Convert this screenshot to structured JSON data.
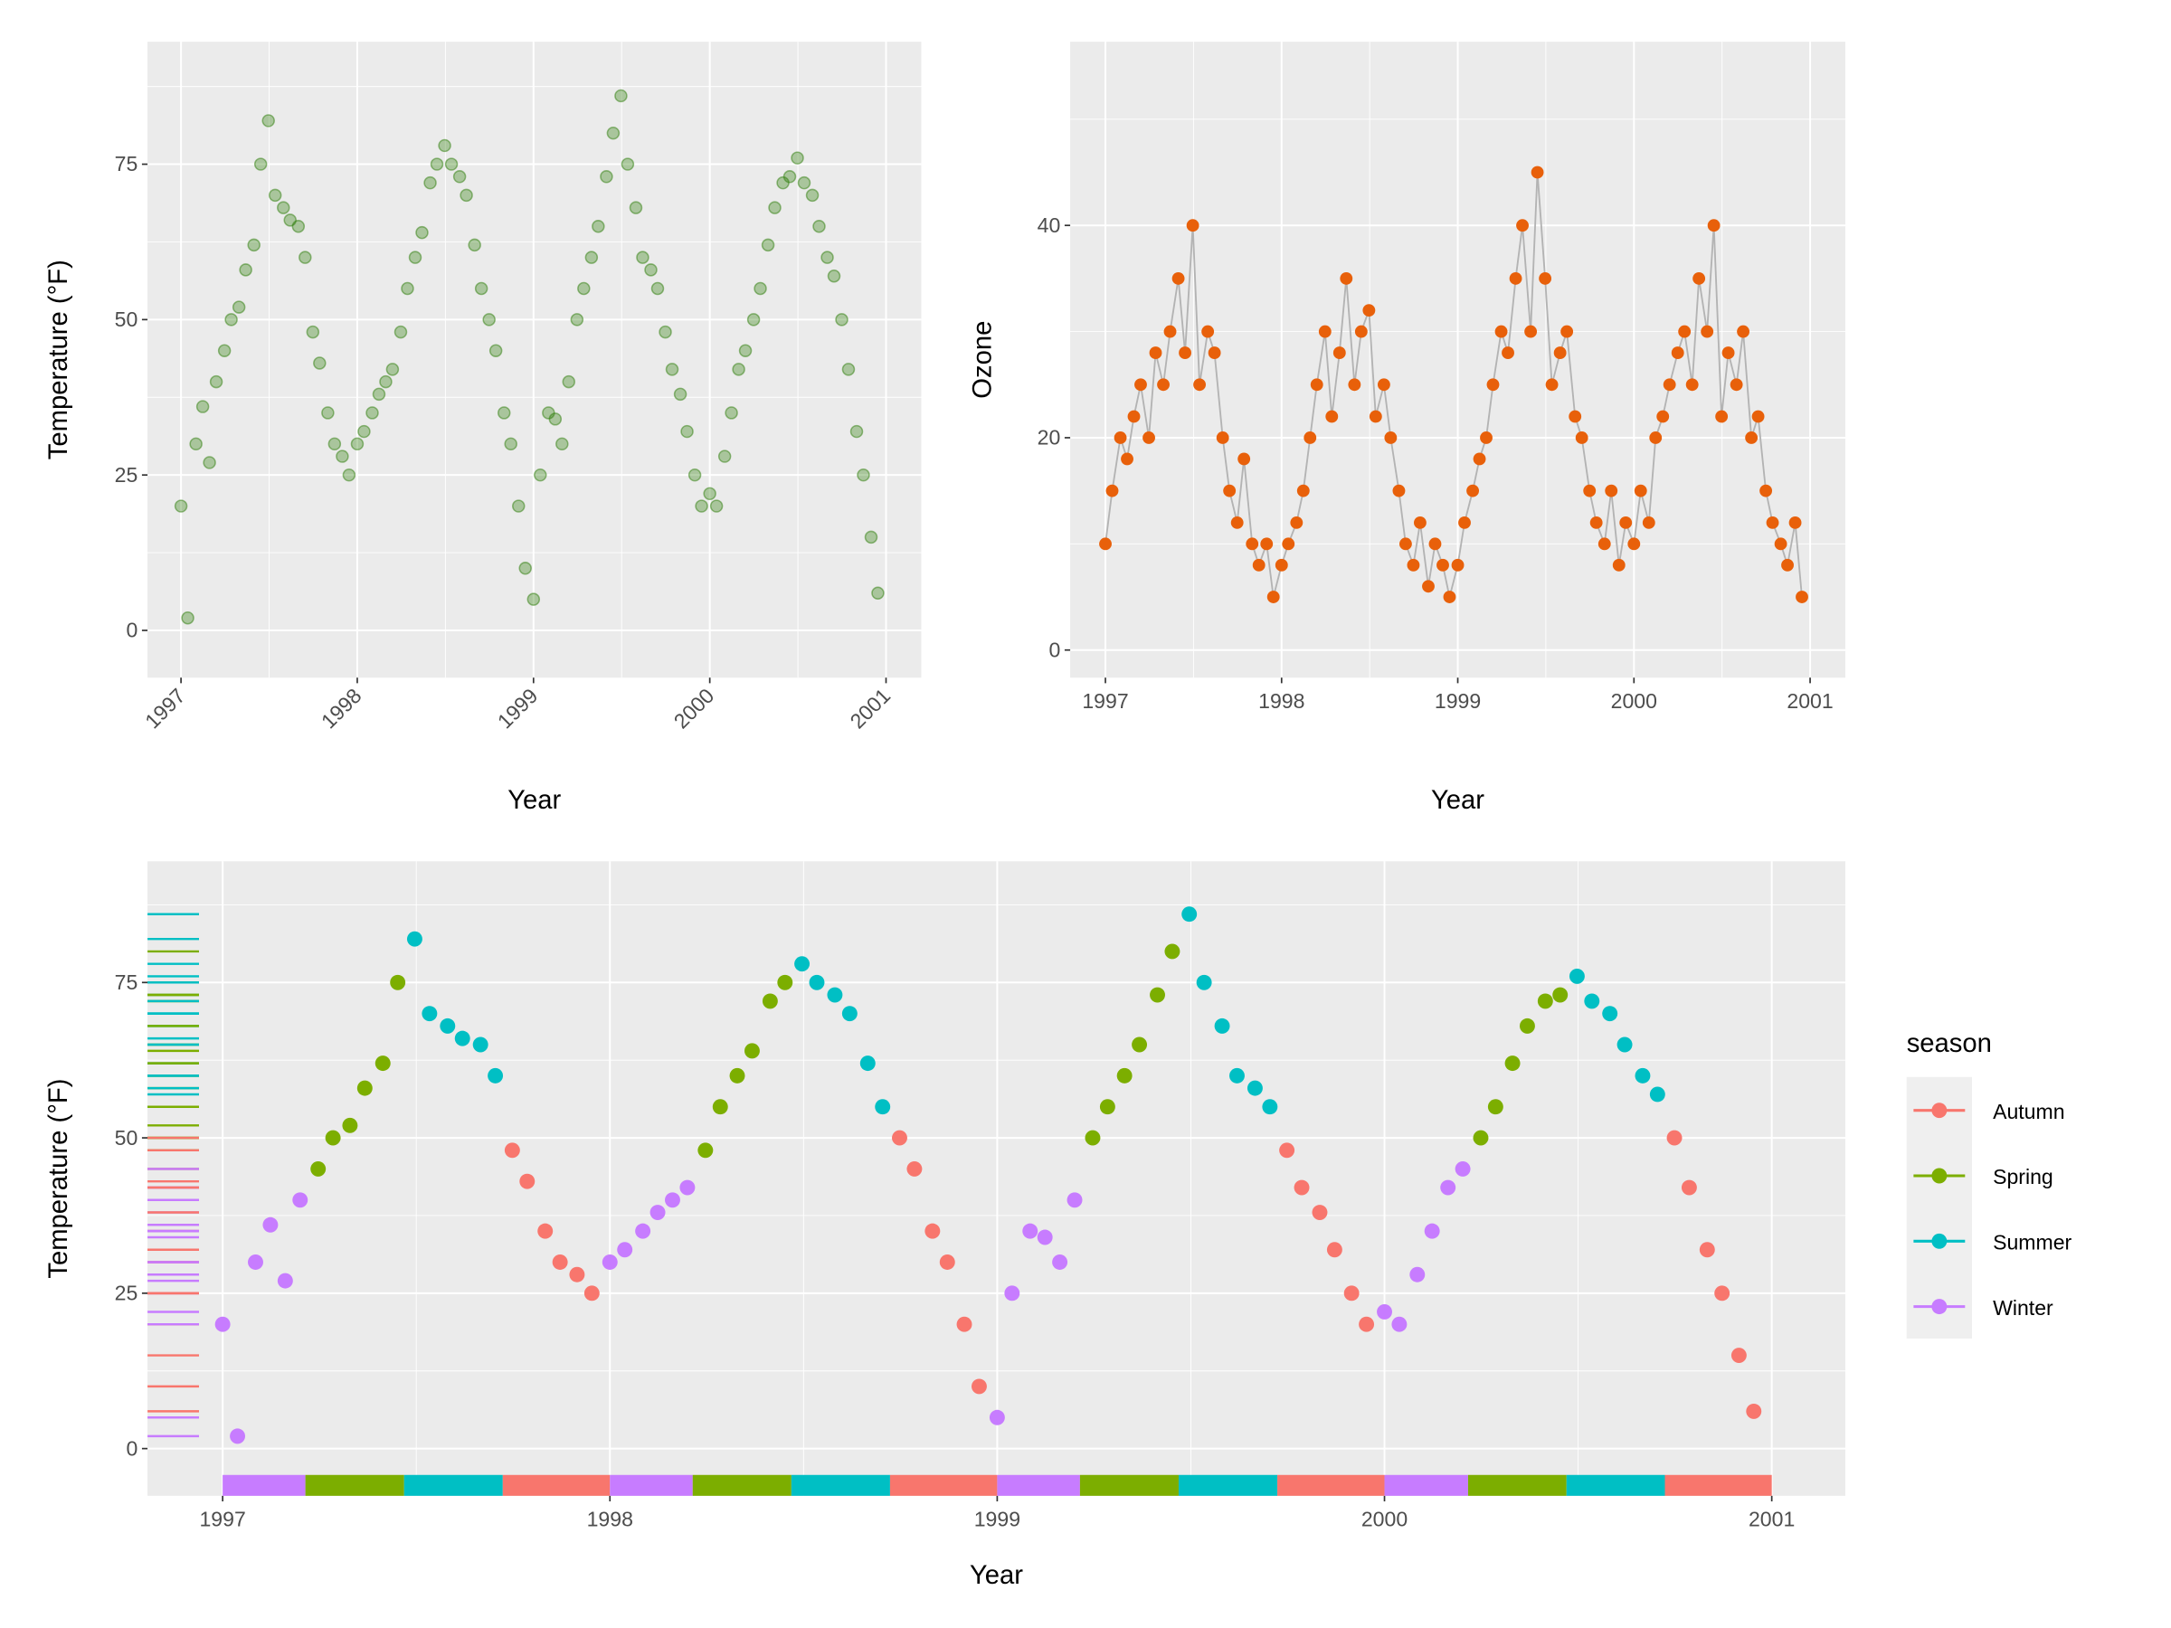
{
  "chart_data": [
    {
      "type": "scatter",
      "panel": "top-left",
      "xlabel": "Year",
      "ylabel": "Temperature (°F)",
      "xticks": [
        "1997",
        "1998",
        "1999",
        "2000",
        "2001"
      ],
      "yticks": [
        "0",
        "25",
        "50",
        "75"
      ],
      "xlim": [
        1996.81,
        2001.2
      ],
      "ylim": [
        -7.6,
        94.7
      ],
      "grid": true,
      "point_color": "#2E7D0A",
      "point_alpha": 0.35,
      "series_ref": "temperature"
    },
    {
      "type": "line",
      "panel": "top-right",
      "xlabel": "Year",
      "ylabel": "Ozone",
      "xticks": [
        "1997",
        "1998",
        "1999",
        "2000",
        "2001"
      ],
      "yticks": [
        "0",
        "20",
        "40"
      ],
      "xlim": [
        1996.8,
        2001.2
      ],
      "ylim": [
        -2.6,
        57.3
      ],
      "grid": true,
      "point_color": "#E8600A",
      "line_color": "#B3B3B3",
      "series_ref": "ozone"
    },
    {
      "type": "scatter",
      "panel": "bottom",
      "xlabel": "Year",
      "ylabel": "Temperature (°F)",
      "xticks": [
        "1997",
        "1998",
        "1999",
        "2000",
        "2001"
      ],
      "yticks": [
        "0",
        "25",
        "50",
        "75"
      ],
      "xlim": [
        1996.806,
        2001.19
      ],
      "ylim": [
        -7.6,
        94.5
      ],
      "grid": true,
      "rug": "left",
      "color_by": "season",
      "legend": {
        "title": "season",
        "position": "right",
        "entries": [
          {
            "label": "Autumn",
            "color": "#F8766D"
          },
          {
            "label": "Spring",
            "color": "#7CAE00"
          },
          {
            "label": "Summer",
            "color": "#00BFC4"
          },
          {
            "label": "Winter",
            "color": "#C77CFF"
          }
        ]
      },
      "season_bands": [
        {
          "season": "Winter",
          "start": "1997-01-01",
          "end": "1997-03-20"
        },
        {
          "season": "Spring",
          "start": "1997-03-20",
          "end": "1997-06-21"
        },
        {
          "season": "Summer",
          "start": "1997-06-21",
          "end": "1997-09-22"
        },
        {
          "season": "Autumn",
          "start": "1997-09-22",
          "end": "1998-01-01"
        },
        {
          "season": "Winter",
          "start": "1998-01-01",
          "end": "1998-03-20"
        },
        {
          "season": "Spring",
          "start": "1998-03-20",
          "end": "1998-06-21"
        },
        {
          "season": "Summer",
          "start": "1998-06-21",
          "end": "1998-09-22"
        },
        {
          "season": "Autumn",
          "start": "1998-09-22",
          "end": "1999-01-01"
        },
        {
          "season": "Winter",
          "start": "1999-01-01",
          "end": "1999-03-20"
        },
        {
          "season": "Spring",
          "start": "1999-03-20",
          "end": "1999-06-21"
        },
        {
          "season": "Summer",
          "start": "1999-06-21",
          "end": "1999-09-22"
        },
        {
          "season": "Autumn",
          "start": "1999-09-22",
          "end": "2000-01-01"
        },
        {
          "season": "Winter",
          "start": "2000-01-01",
          "end": "2000-03-20"
        },
        {
          "season": "Spring",
          "start": "2000-03-20",
          "end": "2000-06-21"
        },
        {
          "season": "Summer",
          "start": "2000-06-21",
          "end": "2000-09-22"
        },
        {
          "season": "Autumn",
          "start": "2000-09-22",
          "end": "2001-01-01"
        }
      ],
      "series_ref": "temperature"
    }
  ],
  "series": {
    "dates": [
      "1997-01-01",
      "1997-01-15",
      "1997-02-01",
      "1997-02-15",
      "1997-03-01",
      "1997-03-15",
      "1997-04-01",
      "1997-04-15",
      "1997-05-01",
      "1997-05-15",
      "1997-06-01",
      "1997-06-15",
      "1997-07-01",
      "1997-07-15",
      "1997-08-01",
      "1997-08-15",
      "1997-09-01",
      "1997-09-15",
      "1997-10-01",
      "1997-10-15",
      "1997-11-01",
      "1997-11-15",
      "1997-12-01",
      "1997-12-15",
      "1998-01-01",
      "1998-01-15",
      "1998-02-01",
      "1998-02-15",
      "1998-03-01",
      "1998-03-15",
      "1998-04-01",
      "1998-04-15",
      "1998-05-01",
      "1998-05-15",
      "1998-06-01",
      "1998-06-15",
      "1998-07-01",
      "1998-07-15",
      "1998-08-01",
      "1998-08-15",
      "1998-09-01",
      "1998-09-15",
      "1998-10-01",
      "1998-10-15",
      "1998-11-01",
      "1998-11-15",
      "1998-12-01",
      "1998-12-15",
      "1999-01-01",
      "1999-01-15",
      "1999-02-01",
      "1999-02-15",
      "1999-03-01",
      "1999-03-15",
      "1999-04-01",
      "1999-04-15",
      "1999-05-01",
      "1999-05-15",
      "1999-06-01",
      "1999-06-15",
      "1999-07-01",
      "1999-07-15",
      "1999-08-01",
      "1999-08-15",
      "1999-09-01",
      "1999-09-15",
      "1999-10-01",
      "1999-10-15",
      "1999-11-01",
      "1999-11-15",
      "1999-12-01",
      "1999-12-15",
      "2000-01-01",
      "2000-01-15",
      "2000-02-01",
      "2000-02-15",
      "2000-03-01",
      "2000-03-15",
      "2000-04-01",
      "2000-04-15",
      "2000-05-01",
      "2000-05-15",
      "2000-06-01",
      "2000-06-15",
      "2000-07-01",
      "2000-07-15",
      "2000-08-01",
      "2000-08-15",
      "2000-09-01",
      "2000-09-15",
      "2000-10-01",
      "2000-10-15",
      "2000-11-01",
      "2000-11-15",
      "2000-12-01",
      "2000-12-15"
    ],
    "temperature": [
      20,
      2,
      30,
      36,
      27,
      40,
      45,
      50,
      52,
      58,
      62,
      75,
      82,
      70,
      68,
      66,
      65,
      60,
      48,
      43,
      35,
      30,
      28,
      25,
      30,
      32,
      35,
      38,
      40,
      42,
      48,
      55,
      60,
      64,
      72,
      75,
      78,
      75,
      73,
      70,
      62,
      55,
      50,
      45,
      35,
      30,
      20,
      10,
      5,
      25,
      35,
      34,
      30,
      40,
      50,
      55,
      60,
      65,
      73,
      80,
      86,
      75,
      68,
      60,
      58,
      55,
      48,
      42,
      38,
      32,
      25,
      20,
      22,
      20,
      28,
      35,
      42,
      45,
      50,
      55,
      62,
      68,
      72,
      73,
      76,
      72,
      70,
      65,
      60,
      57,
      50,
      42,
      32,
      25,
      15,
      6
    ],
    "ozone": [
      10,
      15,
      20,
      18,
      22,
      25,
      20,
      28,
      25,
      30,
      35,
      28,
      40,
      25,
      30,
      28,
      20,
      15,
      12,
      18,
      10,
      8,
      10,
      5,
      8,
      10,
      12,
      15,
      20,
      25,
      30,
      22,
      28,
      35,
      25,
      30,
      32,
      22,
      25,
      20,
      15,
      10,
      8,
      12,
      6,
      10,
      8,
      5,
      8,
      12,
      15,
      18,
      20,
      25,
      30,
      28,
      35,
      40,
      30,
      45,
      35,
      25,
      28,
      30,
      22,
      20,
      15,
      12,
      10,
      15,
      8,
      12,
      10,
      15,
      12,
      20,
      22,
      25,
      28,
      30,
      25,
      35,
      30,
      40,
      22,
      28,
      25,
      30,
      20,
      22,
      15,
      12,
      10,
      8,
      12,
      5
    ]
  }
}
